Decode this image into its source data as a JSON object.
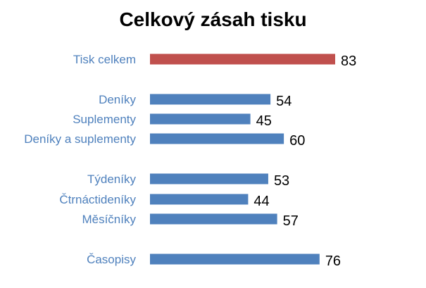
{
  "chart_data": {
    "type": "bar",
    "orientation": "horizontal",
    "title": "Celkový zásah tisku",
    "xlabel": "",
    "ylabel": "",
    "xlim": [
      0,
      100
    ],
    "grid": false,
    "legend": "none",
    "categories": [
      "Tisk celkem",
      "Deníky",
      "Suplementy",
      "Deníky a suplementy",
      "Týdeníky",
      "Čtrnáctideníky",
      "Měsíčníky",
      "Časopisy"
    ],
    "values": [
      83,
      54,
      45,
      60,
      53,
      44,
      57,
      76
    ],
    "highlight_color": "#C0504D",
    "bar_color": "#4F81BD",
    "label_color": "#4F81BD"
  }
}
